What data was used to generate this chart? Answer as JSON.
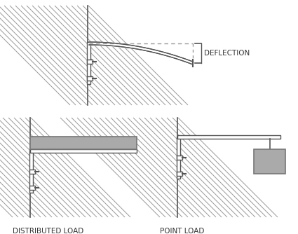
{
  "bg_color": "#ffffff",
  "wall_hatch_color": "#999999",
  "wall_border_color": "#555555",
  "plate_color": "#555555",
  "plate_fill": "#ffffff",
  "bolt_color": "#555555",
  "weight_color": "#aaaaaa",
  "weight_border": "#777777",
  "weight_text_color": "#000000",
  "text_color": "#333333",
  "title_top": "DEFLECTION",
  "title_bottom_left": "DISTRIBUTED LOAD",
  "title_bottom_right": "POINT LOAD",
  "dashed_color": "#999999",
  "figure_bg": "#ffffff",
  "deflection_curve_color": "#555555",
  "label_fontsize": 7.5
}
